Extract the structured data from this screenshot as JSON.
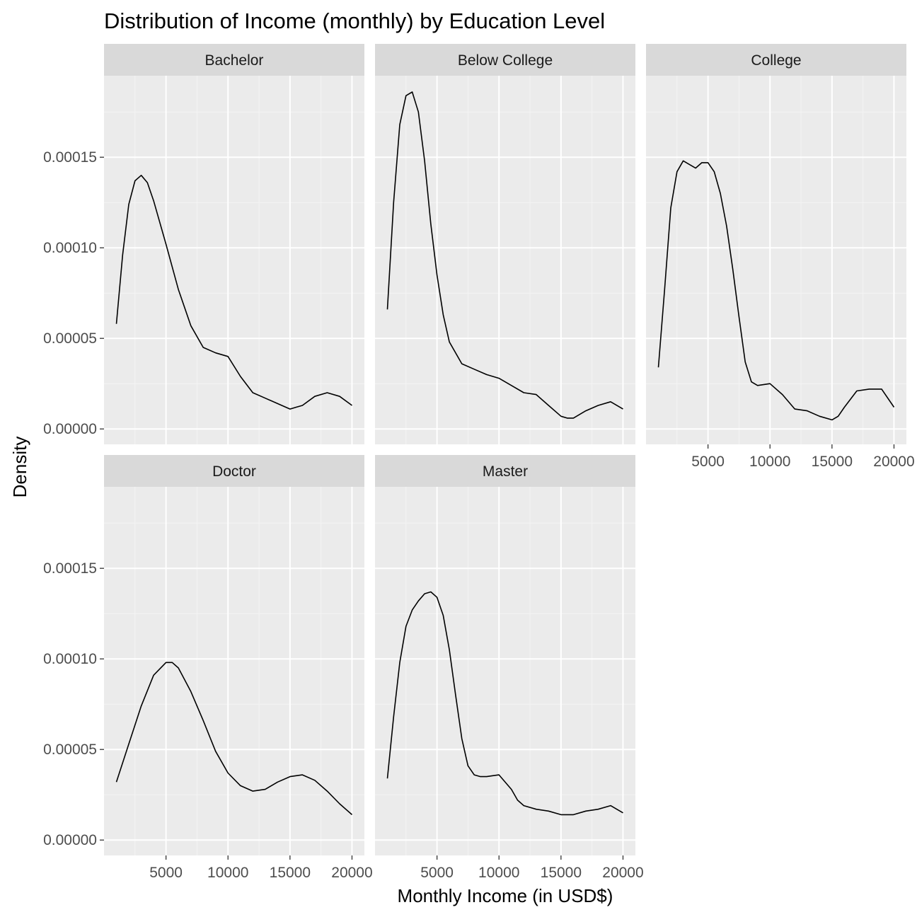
{
  "chart_data": {
    "type": "line",
    "title": "Distribution of Income (monthly) by Education Level",
    "xlabel": "Monthly Income (in USD$)",
    "ylabel": "Density",
    "xlim": [
      0,
      21000
    ],
    "ylim": [
      -8.5e-06,
      0.000195
    ],
    "x_ticks": [
      5000,
      10000,
      15000,
      20000
    ],
    "x_tick_labels": [
      "5000",
      "10000",
      "15000",
      "20000"
    ],
    "y_ticks": [
      0,
      5e-05,
      0.0001,
      0.00015
    ],
    "y_tick_labels": [
      "0.00000",
      "0.00005",
      "0.00010",
      "0.00015"
    ],
    "grid": true,
    "line_color": "#000000",
    "panel_background": "#ebebeb",
    "strip_background": "#d9d9d9",
    "panels": [
      {
        "name": "Bachelor",
        "x": [
          1000,
          1500,
          2000,
          2500,
          3000,
          3500,
          4000,
          5000,
          6000,
          7000,
          8000,
          9000,
          10000,
          11000,
          12000,
          13000,
          14000,
          15000,
          15500,
          16000,
          17000,
          18000,
          19000,
          20000
        ],
        "y": [
          5.8e-05,
          9.6e-05,
          0.000124,
          0.000137,
          0.00014,
          0.000136,
          0.000126,
          0.000102,
          7.7e-05,
          5.7e-05,
          4.5e-05,
          4.2e-05,
          4e-05,
          2.9e-05,
          2e-05,
          1.7e-05,
          1.4e-05,
          1.1e-05,
          1.2e-05,
          1.3e-05,
          1.8e-05,
          2e-05,
          1.8e-05,
          1.3e-05
        ]
      },
      {
        "name": "Below College",
        "x": [
          1000,
          1500,
          2000,
          2500,
          3000,
          3500,
          4000,
          4500,
          5000,
          5500,
          6000,
          7000,
          8000,
          9000,
          10000,
          11000,
          12000,
          13000,
          14000,
          15000,
          15500,
          16000,
          17000,
          18000,
          19000,
          20000
        ],
        "y": [
          6.6e-05,
          0.000125,
          0.000168,
          0.000184,
          0.000186,
          0.000175,
          0.000148,
          0.000113,
          8.5e-05,
          6.3e-05,
          4.8e-05,
          3.6e-05,
          3.3e-05,
          3e-05,
          2.8e-05,
          2.4e-05,
          2e-05,
          1.9e-05,
          1.3e-05,
          7e-06,
          6e-06,
          6e-06,
          1e-05,
          1.3e-05,
          1.5e-05,
          1.1e-05
        ]
      },
      {
        "name": "College",
        "x": [
          1000,
          1500,
          2000,
          2500,
          3000,
          3500,
          4000,
          4500,
          5000,
          5500,
          6000,
          6500,
          7000,
          7500,
          8000,
          8500,
          9000,
          10000,
          11000,
          12000,
          13000,
          14000,
          15000,
          15500,
          16000,
          17000,
          18000,
          19000,
          20000
        ],
        "y": [
          3.4e-05,
          7.7e-05,
          0.000122,
          0.000142,
          0.000148,
          0.000146,
          0.000144,
          0.000147,
          0.000147,
          0.000142,
          0.00013,
          0.000112,
          8.8e-05,
          6.2e-05,
          3.7e-05,
          2.6e-05,
          2.4e-05,
          2.5e-05,
          1.9e-05,
          1.1e-05,
          1e-05,
          7e-06,
          5e-06,
          7e-06,
          1.2e-05,
          2.1e-05,
          2.2e-05,
          2.2e-05,
          1.2e-05
        ]
      },
      {
        "name": "Doctor",
        "x": [
          1000,
          2000,
          3000,
          4000,
          5000,
          5500,
          6000,
          7000,
          8000,
          9000,
          10000,
          11000,
          12000,
          13000,
          14000,
          15000,
          16000,
          17000,
          18000,
          19000,
          20000
        ],
        "y": [
          3.2e-05,
          5.3e-05,
          7.4e-05,
          9.1e-05,
          9.8e-05,
          9.8e-05,
          9.5e-05,
          8.2e-05,
          6.6e-05,
          4.9e-05,
          3.7e-05,
          3e-05,
          2.7e-05,
          2.8e-05,
          3.2e-05,
          3.5e-05,
          3.6e-05,
          3.3e-05,
          2.7e-05,
          2e-05,
          1.4e-05
        ]
      },
      {
        "name": "Master",
        "x": [
          1000,
          1500,
          2000,
          2500,
          3000,
          3500,
          4000,
          4500,
          5000,
          5500,
          6000,
          6500,
          7000,
          7500,
          8000,
          8500,
          9000,
          10000,
          11000,
          11500,
          12000,
          13000,
          14000,
          15000,
          16000,
          17000,
          18000,
          19000,
          20000
        ],
        "y": [
          3.4e-05,
          6.8e-05,
          9.8e-05,
          0.000118,
          0.000127,
          0.000132,
          0.000136,
          0.000137,
          0.000134,
          0.000124,
          0.000105,
          8e-05,
          5.6e-05,
          4.1e-05,
          3.6e-05,
          3.5e-05,
          3.5e-05,
          3.6e-05,
          2.8e-05,
          2.2e-05,
          1.9e-05,
          1.7e-05,
          1.6e-05,
          1.4e-05,
          1.4e-05,
          1.6e-05,
          1.7e-05,
          1.9e-05,
          1.5e-05
        ]
      }
    ]
  }
}
